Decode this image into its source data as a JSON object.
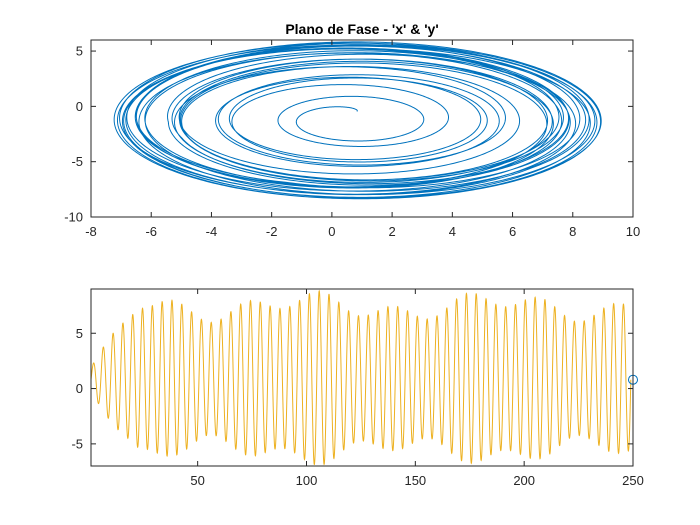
{
  "colors": {
    "background": "#ffffff",
    "axes": "#262626",
    "phase_line": "#0072BD",
    "series_line": "#EDB120",
    "marker": "#0072BD"
  },
  "chart_data": [
    {
      "type": "line",
      "title": "Plano de Fase - 'x' & 'y'",
      "xlabel": "",
      "ylabel": "",
      "xlim": [
        -8,
        10
      ],
      "ylim": [
        -10,
        6
      ],
      "xticks": [
        -8,
        -6,
        -4,
        -2,
        0,
        2,
        4,
        6,
        8,
        10
      ],
      "yticks": [
        -10,
        -5,
        0,
        5
      ],
      "grid": false,
      "series": [
        {
          "kind": "spiral-attractor",
          "description_source": "drawn",
          "inner_start": [
            0.9,
            0.4
          ],
          "center": [
            0.7,
            -1.2
          ],
          "outer_extent": {
            "x_min": -7.3,
            "x_max": 9.0,
            "y_min": -8.4,
            "y_max": 5.9
          }
        }
      ]
    },
    {
      "type": "line",
      "title": "",
      "xlabel": "",
      "ylabel": "",
      "xlim": [
        1,
        250
      ],
      "ylim": [
        -7,
        9
      ],
      "xticks": [
        50,
        100,
        150,
        200,
        250
      ],
      "yticks": [
        -5,
        0,
        5
      ],
      "grid": false,
      "series": [
        {
          "kind": "oscillation",
          "x_start": 1,
          "x_end": 249,
          "mean": 0.8,
          "peak_max": 8.9,
          "trough_min": -7.0,
          "cycles": 55
        }
      ],
      "marker": {
        "x": 250,
        "y": 0.8,
        "shape": "circle"
      }
    }
  ]
}
